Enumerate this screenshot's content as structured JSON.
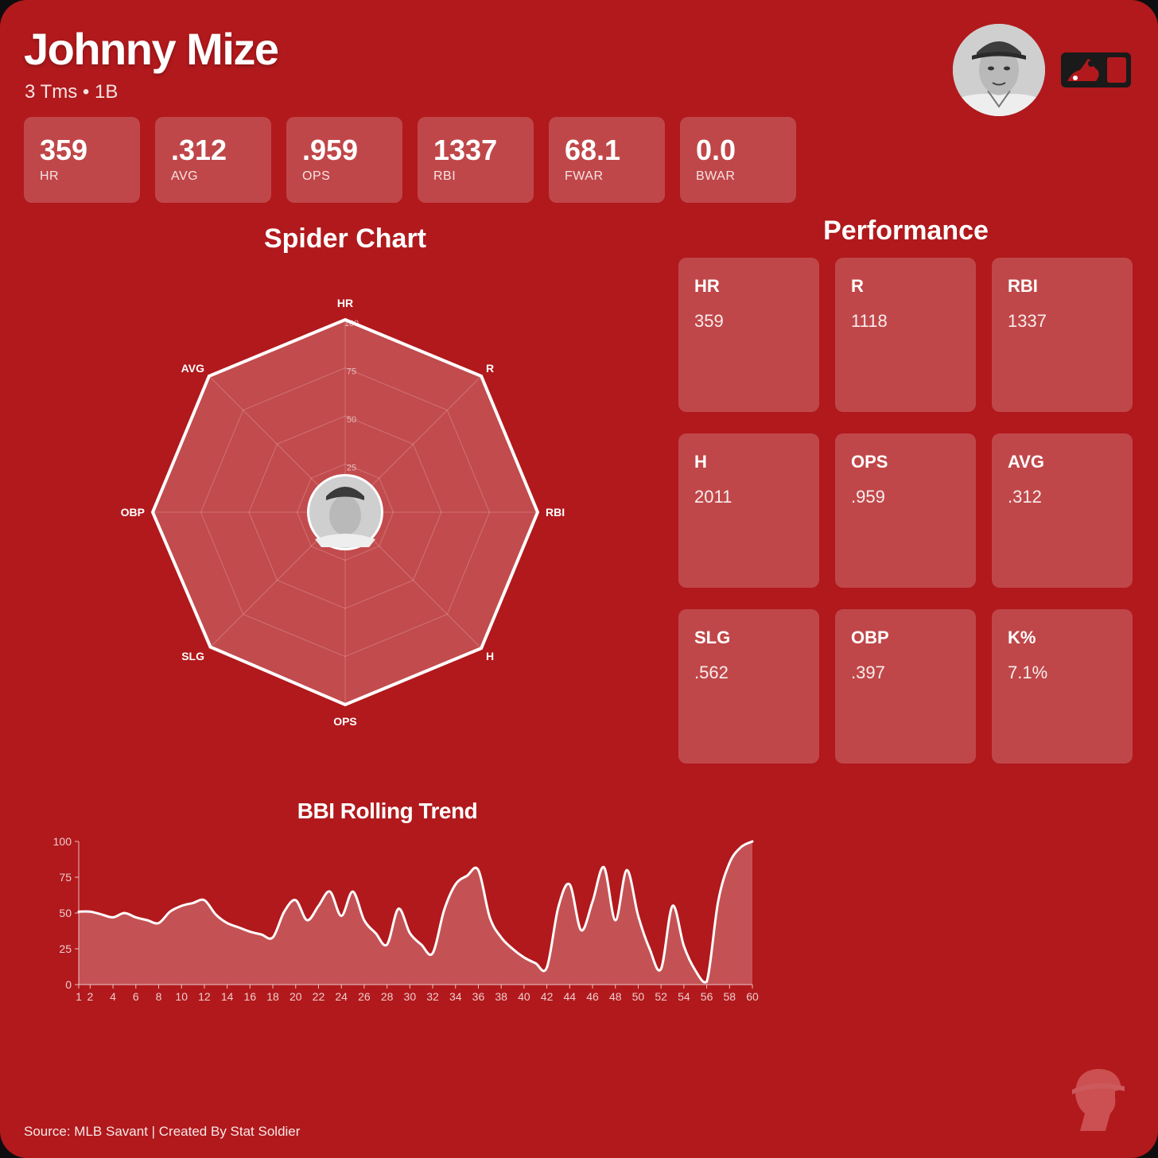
{
  "player": {
    "name": "Johnny Mize",
    "subtitle": "3 Tms • 1B"
  },
  "summary_stats": [
    {
      "value": "359",
      "label": "HR"
    },
    {
      "value": ".312",
      "label": "AVG"
    },
    {
      "value": ".959",
      "label": "OPS"
    },
    {
      "value": "1337",
      "label": "RBI"
    },
    {
      "value": "68.1",
      "label": "FWAR"
    },
    {
      "value": "0.0",
      "label": "BWAR"
    }
  ],
  "sections": {
    "spider_title": "Spider Chart",
    "performance_title": "Performance",
    "trend_title": "BBI Rolling Trend"
  },
  "performance": [
    {
      "label": "HR",
      "value": "359"
    },
    {
      "label": "R",
      "value": "1118"
    },
    {
      "label": "RBI",
      "value": "1337"
    },
    {
      "label": "H",
      "value": "2011"
    },
    {
      "label": "OPS",
      "value": ".959"
    },
    {
      "label": "AVG",
      "value": ".312"
    },
    {
      "label": "SLG",
      "value": ".562"
    },
    {
      "label": "OBP",
      "value": ".397"
    },
    {
      "label": "K%",
      "value": "7.1%"
    }
  ],
  "footer": "Source: MLB Savant | Created By Stat Soldier",
  "icons": {
    "headshot": "player-headshot-icon",
    "logo": "mlb-logo-icon",
    "watermark": "soldier-helmet-icon"
  },
  "colors": {
    "background": "#b1191c",
    "line": "#ffffff",
    "card": "rgba(255,255,255,0.2)"
  },
  "chart_data": [
    {
      "type": "radar",
      "axes": [
        "HR",
        "R",
        "RBI",
        "H",
        "OPS",
        "SLG",
        "OBP",
        "AVG"
      ],
      "values": [
        100,
        100,
        100,
        100,
        100,
        99,
        100,
        100
      ],
      "range": [
        0,
        100
      ],
      "ticks": [
        25,
        50,
        75,
        100
      ]
    },
    {
      "type": "area",
      "x": [
        1,
        2,
        3,
        4,
        5,
        6,
        7,
        8,
        9,
        10,
        11,
        12,
        13,
        14,
        15,
        16,
        17,
        18,
        19,
        20,
        21,
        22,
        23,
        24,
        25,
        26,
        27,
        28,
        29,
        30,
        31,
        32,
        33,
        34,
        35,
        36,
        37,
        38,
        39,
        40,
        41,
        42,
        43,
        44,
        45,
        46,
        47,
        48,
        49,
        50,
        51,
        52,
        53,
        54,
        55,
        56,
        57,
        58,
        59,
        60
      ],
      "values": [
        51,
        51,
        49,
        47,
        50,
        47,
        45,
        43,
        51,
        55,
        57,
        59,
        49,
        43,
        40,
        37,
        35,
        33,
        51,
        59,
        45,
        55,
        65,
        48,
        65,
        45,
        36,
        28,
        53,
        36,
        28,
        22,
        52,
        70,
        76,
        80,
        47,
        33,
        25,
        19,
        15,
        12,
        54,
        70,
        38,
        58,
        82,
        45,
        80,
        48,
        25,
        11,
        55,
        27,
        10,
        2,
        58,
        85,
        96,
        100
      ],
      "x_ticks": [
        1,
        2,
        4,
        6,
        8,
        10,
        12,
        14,
        16,
        18,
        20,
        22,
        24,
        26,
        28,
        30,
        32,
        34,
        36,
        38,
        40,
        42,
        44,
        46,
        48,
        50,
        52,
        54,
        56,
        58,
        60
      ],
      "y_ticks": [
        0,
        25,
        50,
        75,
        100
      ],
      "ylim": [
        0,
        100
      ],
      "xlim": [
        1,
        60
      ]
    }
  ]
}
